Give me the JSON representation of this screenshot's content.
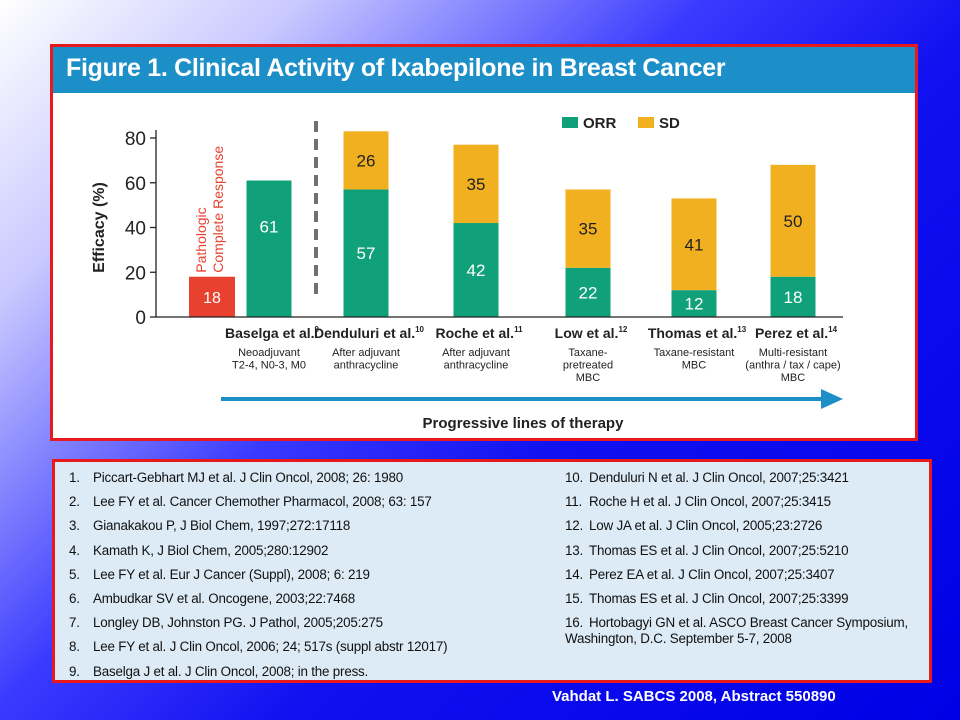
{
  "figure_title": "Figure 1. Clinical Activity of Ixabepilone in Breast Cancer",
  "chart_data": {
    "type": "bar",
    "stacked": true,
    "ylabel": "Efficacy (%)",
    "xlabel": "Progressive lines of therapy",
    "ylim": [
      0,
      80
    ],
    "yticks": [
      0,
      20,
      40,
      60,
      80
    ],
    "legend_position": "top-right",
    "categories": [
      {
        "study": "Baselga et al.",
        "ref": "9",
        "subtitle": [
          "Neoadjuvant",
          "T2-4, N0-3, M0"
        ]
      },
      {
        "study": "Denduluri et al.",
        "ref": "10",
        "subtitle": [
          "After adjuvant",
          "anthracycline"
        ]
      },
      {
        "study": "Roche et al.",
        "ref": "11",
        "subtitle": [
          "After adjuvant",
          "anthracycline"
        ]
      },
      {
        "study": "Low et al.",
        "ref": "12",
        "subtitle": [
          "Taxane-",
          "pretreated",
          "MBC"
        ]
      },
      {
        "study": "Thomas et al.",
        "ref": "13",
        "subtitle": [
          "Taxane-resistant",
          "MBC"
        ]
      },
      {
        "study": "Perez et al.",
        "ref": "14",
        "subtitle": [
          "Multi-resistant",
          "(anthra / tax / cape)",
          "MBC"
        ]
      }
    ],
    "pcr": {
      "label_lines": [
        "Pathologic",
        "Complete Response"
      ],
      "value": 18,
      "color": "#e84130"
    },
    "series": [
      {
        "name": "ORR",
        "color": "#10a07a",
        "values": [
          61,
          57,
          42,
          22,
          12,
          18
        ]
      },
      {
        "name": "SD",
        "color": "#f0b020",
        "values": [
          null,
          26,
          35,
          35,
          41,
          50
        ]
      }
    ]
  },
  "references": {
    "left": [
      {
        "num": "1.",
        "text": "Piccart-Gebhart MJ et al. J Clin Oncol, 2008; 26: 1980"
      },
      {
        "num": "2.",
        "text": "Lee FY et al. Cancer Chemother Pharmacol, 2008; 63: 157"
      },
      {
        "num": "3.",
        "text": "Gianakakou P, J Biol Chem, 1997;272:17118"
      },
      {
        "num": "4.",
        "text": "Kamath K, J Biol Chem, 2005;280:12902"
      },
      {
        "num": "5.",
        "text": "Lee FY et al. Eur J Cancer (Suppl), 2008; 6: 219"
      },
      {
        "num": "6.",
        "text": "Ambudkar SV et al. Oncogene, 2003;22:7468"
      },
      {
        "num": "7.",
        "text": "Longley DB, Johnston PG. J Pathol, 2005;205:275"
      },
      {
        "num": "8.",
        "text": "Lee FY et al. J Clin Oncol, 2006; 24; 517s (suppl abstr 12017)"
      },
      {
        "num": "9.",
        "text": "Baselga J et al. J Clin Oncol, 2008; in the press."
      }
    ],
    "right": [
      {
        "num": "10.",
        "text": "Denduluri N et al. J Clin Oncol, 2007;25:3421"
      },
      {
        "num": "11.",
        "text": "Roche H et al. J Clin Oncol, 2007;25:3415"
      },
      {
        "num": "12.",
        "text": "Low JA et al. J Clin Oncol, 2005;23:2726"
      },
      {
        "num": "13.",
        "text": "Thomas ES et al. J Clin Oncol, 2007;25:5210"
      },
      {
        "num": "14.",
        "text": "Perez EA et al. J Clin Oncol, 2007;25:3407"
      },
      {
        "num": "15.",
        "text": "Thomas ES et al. J Clin Oncol, 2007;25:3399"
      },
      {
        "num": "16.",
        "text": "Hortobagyi GN et al. ASCO Breast Cancer Symposium, Washington, D.C. September 5-7, 2008"
      }
    ]
  },
  "footer_citation": "Vahdat L. SABCS 2008, Abstract 550890"
}
